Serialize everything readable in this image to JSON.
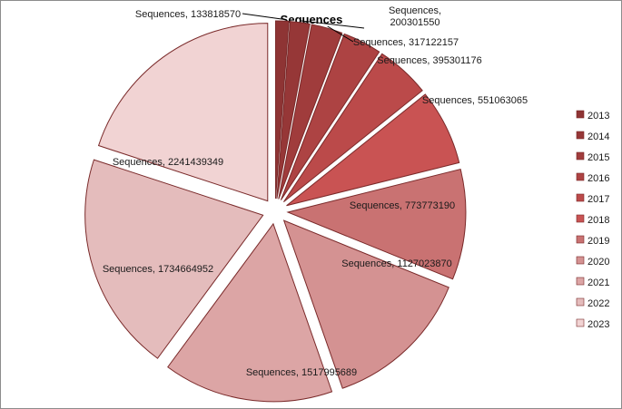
{
  "chart_data": {
    "type": "pie",
    "title": "Sequences",
    "exploded": true,
    "legend_position": "right",
    "series_name": "Sequences",
    "categories": [
      "2013",
      "2014",
      "2015",
      "2016",
      "2017",
      "2018",
      "2019",
      "2020",
      "2021",
      "2022",
      "2023"
    ],
    "values": [
      133818570,
      200301550,
      317122157,
      395301176,
      551063065,
      773773190,
      1127023870,
      1517995689,
      1734664952,
      2241439349,
      2241439349
    ],
    "data_labels": [
      "Sequences, 133818570",
      "Sequences, 200301550",
      "Sequences, 317122157",
      "Sequences, 395301176",
      "Sequences, 551063065",
      "Sequences, 773773190",
      "Sequences, 1127023870",
      "Sequences, 1517995689",
      "Sequences, 1734664952",
      "Sequences, 2241439349",
      ""
    ],
    "colors": [
      "#8e3434",
      "#963737",
      "#a03c3c",
      "#ad4343",
      "#bb4a4a",
      "#c95353",
      "#c97272",
      "#d49292",
      "#dca5a5",
      "#e4bcbc",
      "#f1d3d3"
    ]
  }
}
